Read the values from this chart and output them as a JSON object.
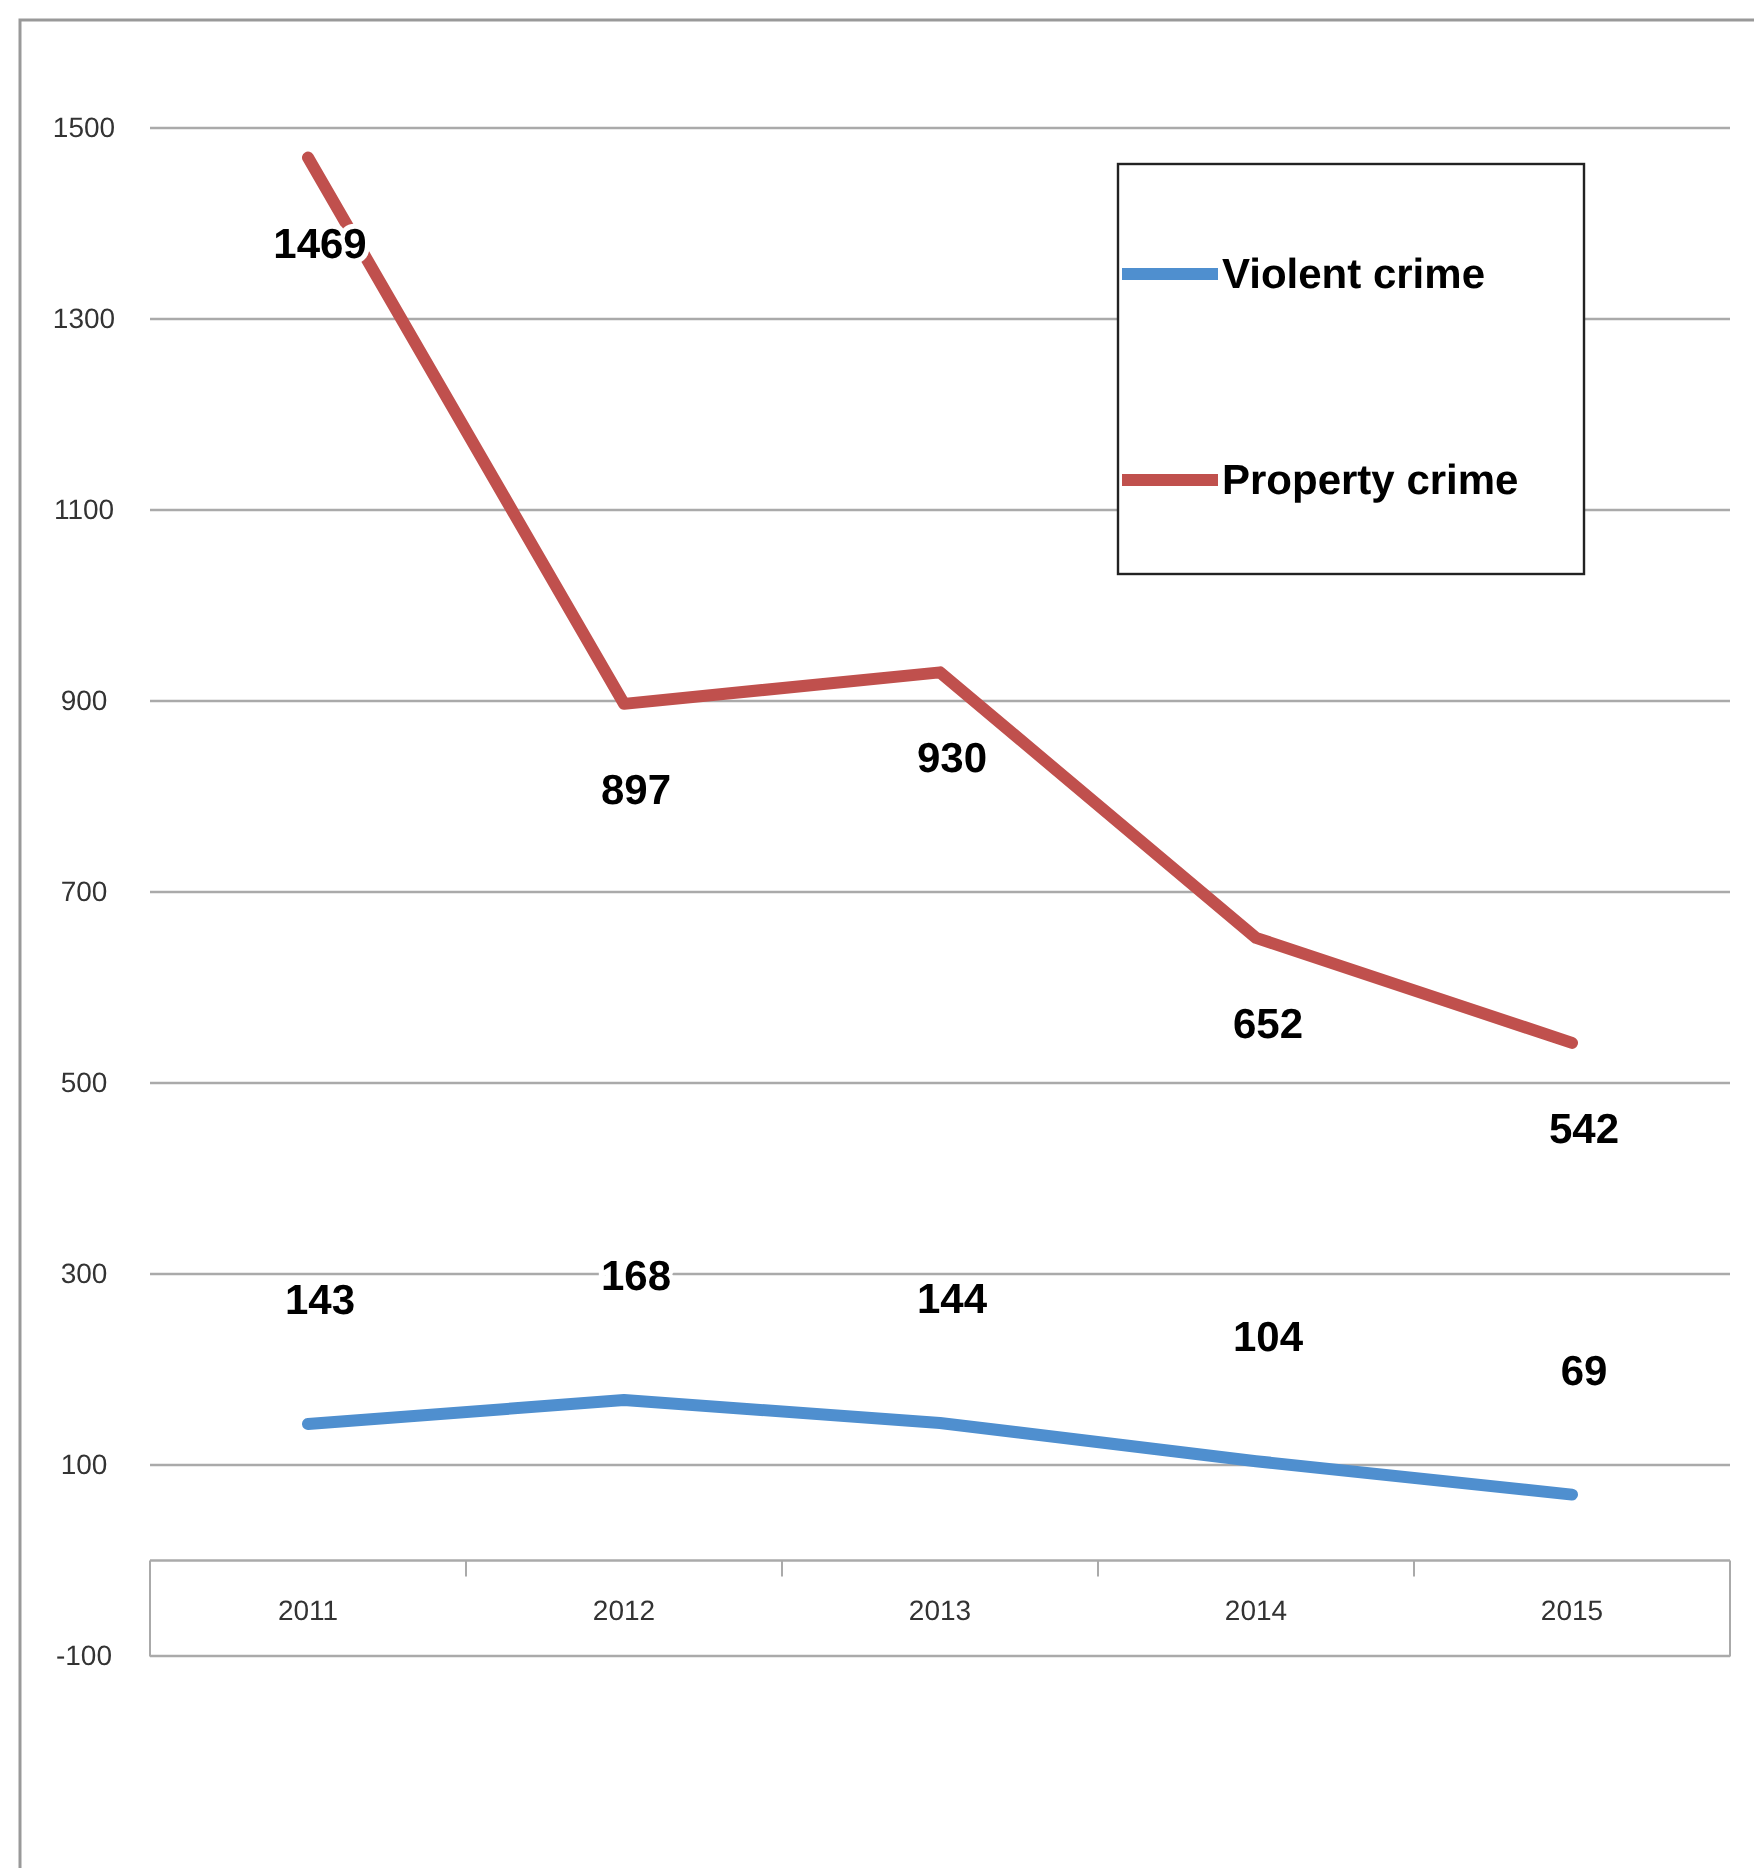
{
  "chart_data": {
    "type": "line",
    "categories": [
      "2011",
      "2012",
      "2013",
      "2014",
      "2015"
    ],
    "series": [
      {
        "name": "Violent crime",
        "color": "#4f8fcf",
        "values": [
          143,
          168,
          144,
          104,
          69
        ]
      },
      {
        "name": "Property crime",
        "color": "#c0504d",
        "values": [
          1469,
          897,
          930,
          652,
          542
        ]
      }
    ],
    "ylim": [
      -100,
      1500
    ],
    "yticks": [
      -100,
      100,
      300,
      500,
      700,
      900,
      1100,
      1300,
      1500
    ],
    "grid": "y",
    "legend": "top right",
    "data_labels": true,
    "marker": "none",
    "line_style": "solid"
  }
}
